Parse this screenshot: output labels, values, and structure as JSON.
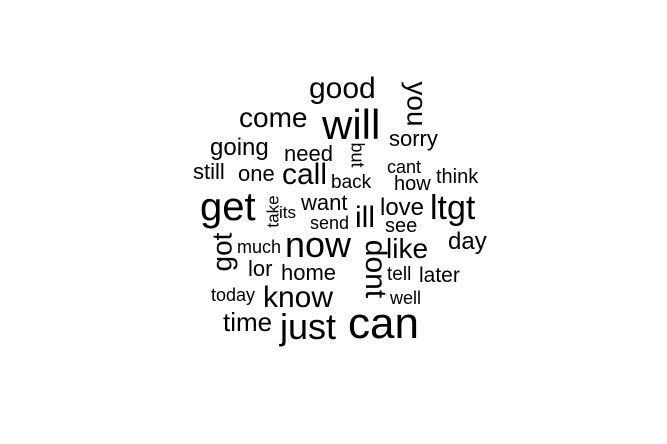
{
  "wordcloud": {
    "color": "#000000",
    "words": {
      "good": "good",
      "will": "will",
      "you": "you",
      "come": "come",
      "sorry": "sorry",
      "going": "going",
      "need": "need",
      "but": "but",
      "cant": "cant",
      "still": "still",
      "one": "one",
      "call": "call",
      "back": "back",
      "how": "how",
      "think": "think",
      "get": "get",
      "take": "take",
      "its": "its",
      "want": "want",
      "send": "send",
      "ill": "ill",
      "love": "love",
      "see": "see",
      "ltgt": "ltgt",
      "got": "got",
      "much": "much",
      "now": "now",
      "dont": "dont",
      "like": "like",
      "day": "day",
      "lor": "lor",
      "home": "home",
      "tell": "tell",
      "later": "later",
      "today": "today",
      "know": "know",
      "well": "well",
      "time": "time",
      "just": "just",
      "can": "can"
    }
  }
}
